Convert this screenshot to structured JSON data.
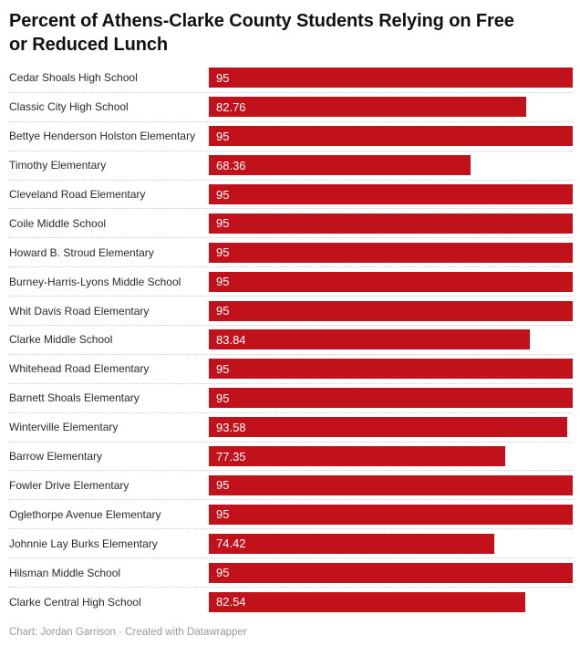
{
  "header": {
    "title": "Percent of Athens-Clarke County Students Relying on Free or Reduced Lunch",
    "title_lines": [
      "Percent of Athens-Clarke County Students Relying on Free",
      "or Reduced Lunch"
    ]
  },
  "footer": {
    "credit": "Chart: Jordan Garrison · Created with Datawrapper"
  },
  "colors": {
    "bar": "#c1121b",
    "value_text": "#ffffff",
    "label_text": "#2b2b2b",
    "title_text": "#111111",
    "separator": "#cccccc",
    "footer_text": "#9a9a9a",
    "background": "#ffffff"
  },
  "chart_data": {
    "type": "bar",
    "orientation": "horizontal",
    "title": "Percent of Athens-Clarke County Students Relying on Free or Reduced Lunch",
    "xlabel": "",
    "ylabel": "",
    "xlim": [
      0,
      95
    ],
    "grid": false,
    "legend": false,
    "value_label_position": "inside-left",
    "separator_style": "dotted",
    "categories": [
      "Cedar Shoals High School",
      "Classic City High School",
      "Bettye Henderson Holston Elementary",
      "Timothy Elementary",
      "Cleveland Road Elementary",
      "Coile Middle School",
      "Howard B. Stroud Elementary",
      "Burney-Harris-Lyons Middle School",
      "Whit Davis Road Elementary",
      "Clarke Middle School",
      "Whitehead Road Elementary",
      "Barnett Shoals Elementary",
      "Winterville Elementary",
      "Barrow Elementary",
      "Fowler Drive Elementary",
      "Oglethorpe Avenue Elementary",
      "Johnnie Lay Burks Elementary",
      "Hilsman Middle School",
      "Clarke Central High School"
    ],
    "values": [
      95,
      82.76,
      95,
      68.36,
      95,
      95,
      95,
      95,
      95,
      83.84,
      95,
      95,
      93.58,
      77.35,
      95,
      95,
      74.42,
      95,
      82.54
    ],
    "value_labels": [
      "95",
      "82.76",
      "95",
      "68.36",
      "95",
      "95",
      "95",
      "95",
      "95",
      "83.84",
      "95",
      "95",
      "93.58",
      "77.35",
      "95",
      "95",
      "74.42",
      "95",
      "82.54"
    ]
  }
}
